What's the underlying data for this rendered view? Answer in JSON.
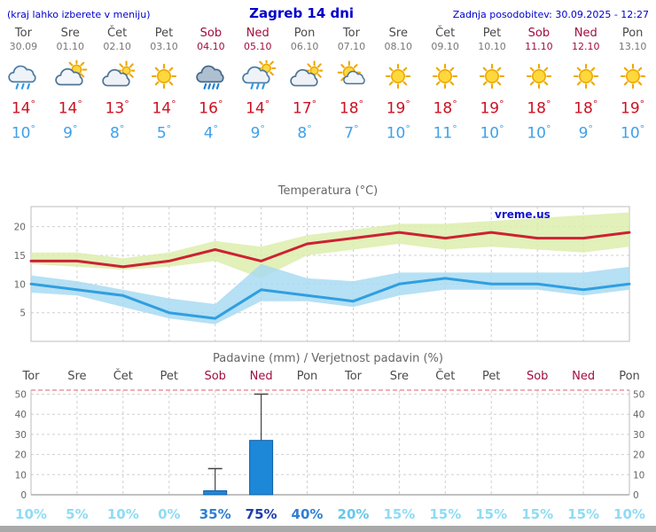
{
  "header": {
    "hint": "(kraj lahko izberete v meniju)",
    "title": "Zagreb 14 dni",
    "updated": "Zadnja posodobitev: 30.09.2025 - 12:27"
  },
  "degree": "°",
  "watermark": "vreme.us",
  "colors": {
    "accent_blue": "#0000cc",
    "temp_high": "#cc1122",
    "temp_low": "#3fa0e8",
    "weekend": "#a00d3f",
    "weekday": "#4a4a4a"
  },
  "forecast": {
    "days": [
      {
        "name": "Tor",
        "date": "30.09",
        "icon": "rain-icon",
        "high": "14",
        "low": "10",
        "weekend": false
      },
      {
        "name": "Sre",
        "date": "01.10",
        "icon": "partly-cloudy-icon",
        "high": "14",
        "low": "9",
        "weekend": false
      },
      {
        "name": "Čet",
        "date": "02.10",
        "icon": "mostly-cloudy-icon",
        "high": "13",
        "low": "8",
        "weekend": false
      },
      {
        "name": "Pet",
        "date": "03.10",
        "icon": "sunny-icon",
        "high": "14",
        "low": "5",
        "weekend": false
      },
      {
        "name": "Sob",
        "date": "04.10",
        "icon": "heavy-rain-icon",
        "high": "16",
        "low": "4",
        "weekend": true
      },
      {
        "name": "Ned",
        "date": "05.10",
        "icon": "sun-showers-icon",
        "high": "14",
        "low": "9",
        "weekend": true
      },
      {
        "name": "Pon",
        "date": "06.10",
        "icon": "mostly-cloudy-icon",
        "high": "17",
        "low": "8",
        "weekend": false
      },
      {
        "name": "Tor",
        "date": "07.10",
        "icon": "mostly-sunny-icon",
        "high": "18",
        "low": "7",
        "weekend": false
      },
      {
        "name": "Sre",
        "date": "08.10",
        "icon": "sunny-icon",
        "high": "19",
        "low": "10",
        "weekend": false
      },
      {
        "name": "Čet",
        "date": "09.10",
        "icon": "sunny-icon",
        "high": "18",
        "low": "11",
        "weekend": false
      },
      {
        "name": "Pet",
        "date": "10.10",
        "icon": "sunny-icon",
        "high": "19",
        "low": "10",
        "weekend": false
      },
      {
        "name": "Sob",
        "date": "11.10",
        "icon": "sunny-icon",
        "high": "18",
        "low": "10",
        "weekend": true
      },
      {
        "name": "Ned",
        "date": "12.10",
        "icon": "sunny-icon",
        "high": "18",
        "low": "9",
        "weekend": true
      },
      {
        "name": "Pon",
        "date": "13.10",
        "icon": "sunny-icon",
        "high": "19",
        "low": "10",
        "weekend": false
      }
    ]
  },
  "chart_data": [
    {
      "type": "line",
      "title": "Temperatura (°C)",
      "categories": [
        "Tor",
        "Sre",
        "Čet",
        "Pet",
        "Sob",
        "Ned",
        "Pon",
        "Tor",
        "Sre",
        "Čet",
        "Pet",
        "Sob",
        "Ned",
        "Pon"
      ],
      "series": [
        {
          "name": "max-temperature",
          "color": "#cc2233",
          "values": [
            14,
            14,
            13,
            14,
            16,
            14,
            17,
            18,
            19,
            18,
            19,
            18,
            18,
            19
          ]
        },
        {
          "name": "min-temperature",
          "color": "#2f9fe0",
          "values": [
            10,
            9,
            8,
            5,
            4,
            9,
            8,
            7,
            10,
            11,
            10,
            10,
            9,
            10
          ]
        }
      ],
      "bands": [
        {
          "name": "max-range",
          "color": "#dcedaa",
          "upper": [
            15.5,
            15.5,
            14.5,
            15.5,
            17.5,
            16.5,
            18.5,
            19.5,
            20.5,
            20.5,
            21,
            21.5,
            22,
            22.5
          ],
          "lower": [
            13.5,
            13,
            12.5,
            13,
            14,
            11,
            15,
            16,
            17,
            16,
            16.5,
            16,
            15.5,
            16.5
          ]
        },
        {
          "name": "min-range",
          "color": "#a6d9f2",
          "upper": [
            11.5,
            10.5,
            9,
            7.5,
            6.5,
            13.5,
            11,
            10.5,
            12,
            12,
            12,
            12,
            12,
            13
          ],
          "lower": [
            8.5,
            8,
            6,
            4,
            3,
            7,
            7,
            6,
            8,
            9,
            9,
            9,
            8,
            9
          ]
        }
      ],
      "ylim": [
        0,
        23.5
      ],
      "yticks": [
        5,
        10,
        15,
        20
      ],
      "grid": true,
      "legend_position": "none"
    },
    {
      "type": "bar",
      "title": "Padavine (mm) / Verjetnost padavin (%)",
      "categories": [
        "Tor",
        "Sre",
        "Čet",
        "Pet",
        "Sob",
        "Ned",
        "Pon",
        "Tor",
        "Sre",
        "Čet",
        "Pet",
        "Sob",
        "Ned",
        "Pon"
      ],
      "values": [
        0,
        0,
        0,
        0,
        2,
        27,
        0,
        0,
        0,
        0,
        0,
        0,
        0,
        0
      ],
      "whisker_max": [
        0,
        0,
        0,
        0,
        13,
        50,
        0,
        0,
        0,
        0,
        0,
        0,
        0,
        0
      ],
      "probabilities": [
        10,
        5,
        10,
        0,
        35,
        75,
        40,
        20,
        15,
        15,
        15,
        15,
        15,
        10
      ],
      "probability_labels": [
        "10%",
        "5%",
        "10%",
        "0%",
        "35%",
        "75%",
        "40%",
        "20%",
        "15%",
        "15%",
        "15%",
        "15%",
        "15%",
        "10%"
      ],
      "prob_colors": [
        "#8edcf4",
        "#8edcf4",
        "#8edcf4",
        "#8edcf4",
        "#2f7fd2",
        "#1f3dae",
        "#2f7fd2",
        "#66c8ec",
        "#8edcf4",
        "#8edcf4",
        "#8edcf4",
        "#8edcf4",
        "#8edcf4",
        "#8edcf4"
      ],
      "ylim": [
        0,
        52
      ],
      "yticks": [
        0,
        10,
        20,
        30,
        40,
        50
      ],
      "bar_color": "#1e88d8",
      "bar_border_color": "#0f5da8",
      "limit_line_color": "#f0919f",
      "grid": true
    }
  ]
}
